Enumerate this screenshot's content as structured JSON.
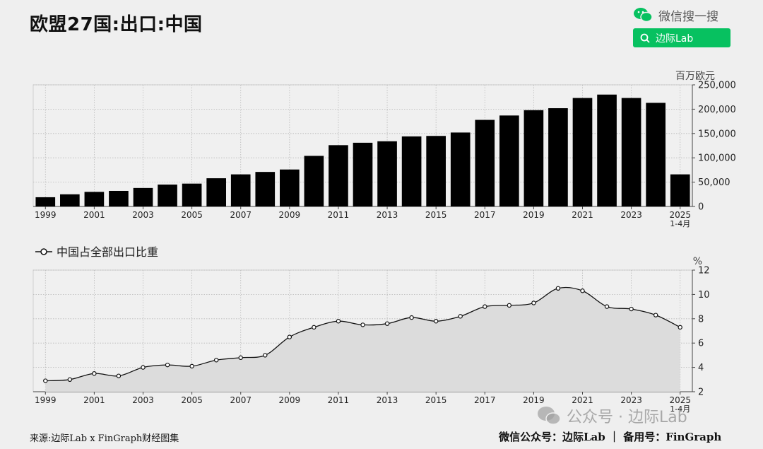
{
  "title": "欧盟27国:出口:中国",
  "search": {
    "wechat_label": "微信搜一搜",
    "button_label": "边际Lab"
  },
  "footer": {
    "source": "来源:边际Lab x FinGraph财经图集",
    "right": "微信公众号：边际Lab ｜ 备用号：FinGraph"
  },
  "watermark": "公众号 · 边际Lab",
  "colors": {
    "bar": "#000000",
    "area": "#dcdcdc",
    "line": "#111111",
    "accent": "#07c160"
  },
  "chart_data": [
    {
      "type": "bar",
      "unit": "百万欧元",
      "categories": [
        "1999",
        "2000",
        "2001",
        "2002",
        "2003",
        "2004",
        "2005",
        "2006",
        "2007",
        "2008",
        "2009",
        "2010",
        "2011",
        "2012",
        "2013",
        "2014",
        "2015",
        "2016",
        "2017",
        "2018",
        "2019",
        "2020",
        "2021",
        "2022",
        "2023",
        "2024",
        "2025 1-4月"
      ],
      "x_tick_labels": [
        "1999",
        "2001",
        "2003",
        "2005",
        "2007",
        "2009",
        "2011",
        "2013",
        "2015",
        "2017",
        "2019",
        "2021",
        "2023",
        "2025"
      ],
      "last_tick_sublabel": "1-4月",
      "values": [
        19000,
        25000,
        30000,
        32000,
        38000,
        45000,
        47000,
        58000,
        66000,
        71000,
        76000,
        104000,
        126000,
        131000,
        134000,
        144000,
        145000,
        152000,
        178000,
        187000,
        198000,
        202000,
        223000,
        230000,
        223000,
        213000,
        66000
      ],
      "ylim": [
        0,
        250000
      ],
      "y_ticks": [
        "0",
        "50,000",
        "100,000",
        "150,000",
        "200,000",
        "250,000"
      ],
      "y_tick_values": [
        0,
        50000,
        100000,
        150000,
        200000,
        250000
      ],
      "grid": true
    },
    {
      "type": "area",
      "legend": "中国占全部出口比重",
      "unit": "%",
      "x": [
        "1999",
        "2000",
        "2001",
        "2002",
        "2003",
        "2004",
        "2005",
        "2006",
        "2007",
        "2008",
        "2009",
        "2010",
        "2011",
        "2012",
        "2013",
        "2014",
        "2015",
        "2016",
        "2017",
        "2018",
        "2019",
        "2020",
        "2021",
        "2022",
        "2023",
        "2024",
        "2025 1-4月"
      ],
      "x_tick_labels": [
        "1999",
        "2001",
        "2003",
        "2005",
        "2007",
        "2009",
        "2011",
        "2013",
        "2015",
        "2017",
        "2019",
        "2021",
        "2023",
        "2025"
      ],
      "last_tick_sublabel": "1-4月",
      "values": [
        2.9,
        3.0,
        3.5,
        3.3,
        4.0,
        4.2,
        4.1,
        4.6,
        4.8,
        5.0,
        6.5,
        7.3,
        7.8,
        7.5,
        7.6,
        8.1,
        7.8,
        8.2,
        9.0,
        9.1,
        9.3,
        10.5,
        10.3,
        9.0,
        8.8,
        8.3,
        7.3
      ],
      "ylim": [
        2,
        12
      ],
      "y_ticks": [
        "2",
        "4",
        "6",
        "8",
        "10",
        "12"
      ],
      "y_tick_values": [
        2,
        4,
        6,
        8,
        10,
        12
      ],
      "grid": true
    }
  ]
}
